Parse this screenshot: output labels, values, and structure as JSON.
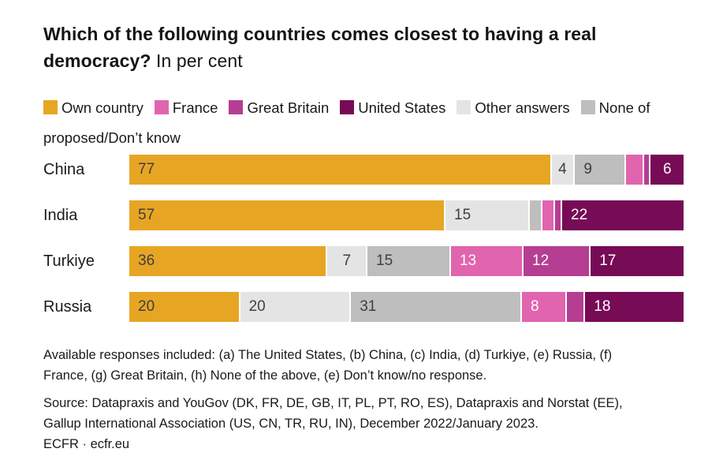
{
  "header": {
    "title_bold": "Which of the following countries comes closest to having a real democracy?",
    "title_rest": " In per cent"
  },
  "chart_data": {
    "type": "bar",
    "stacked": true,
    "orientation": "horizontal",
    "unit": "per cent",
    "title": "Which of the following countries comes closest to having a real democracy?",
    "subtitle": "In per cent",
    "categories": [
      "China",
      "India",
      "Turkiye",
      "Russia"
    ],
    "stack_order": [
      "own_country",
      "other_answers",
      "none_dont_know",
      "france",
      "great_britain",
      "united_states"
    ],
    "legend": [
      {
        "key": "own_country",
        "label": "Own country"
      },
      {
        "key": "france",
        "label": "France"
      },
      {
        "key": "great_britain",
        "label": "Great Britain"
      },
      {
        "key": "united_states",
        "label": "United States"
      },
      {
        "key": "other_answers",
        "label": "Other answers"
      },
      {
        "key": "none_dont_know",
        "label": "None of proposed/Don’t know"
      }
    ],
    "colors": {
      "own_country": {
        "fill": "#E7A524",
        "text": "#3F3F3F"
      },
      "france": {
        "fill": "#E164AF",
        "text": "#FFFFFF"
      },
      "great_britain": {
        "fill": "#B53E92",
        "text": "#FFFFFF"
      },
      "united_states": {
        "fill": "#770B56",
        "text": "#FFFFFF"
      },
      "other_answers": {
        "fill": "#E4E4E4",
        "text": "#3F3F3F"
      },
      "none_dont_know": {
        "fill": "#BEBEBE",
        "text": "#3F3F3F"
      }
    },
    "rows": [
      {
        "category": "China",
        "values": {
          "own_country": 77,
          "other_answers": 4,
          "none_dont_know": 9,
          "france": 3,
          "great_britain": 1,
          "united_states": 6
        },
        "labels": {
          "own_country": "77",
          "other_answers": "4",
          "none_dont_know": "9",
          "france": "",
          "great_britain": "",
          "united_states": "6"
        }
      },
      {
        "category": "India",
        "values": {
          "own_country": 57,
          "other_answers": 15,
          "none_dont_know": 2,
          "france": 2,
          "great_britain": 1,
          "united_states": 22
        },
        "labels": {
          "own_country": "57",
          "other_answers": "15",
          "none_dont_know": "",
          "france": "",
          "great_britain": "",
          "united_states": "22"
        }
      },
      {
        "category": "Turkiye",
        "values": {
          "own_country": 36,
          "other_answers": 7,
          "none_dont_know": 15,
          "france": 13,
          "great_britain": 12,
          "united_states": 17
        },
        "labels": {
          "own_country": "36",
          "other_answers": "7",
          "none_dont_know": "15",
          "france": "13",
          "great_britain": "12",
          "united_states": "17"
        }
      },
      {
        "category": "Russia",
        "values": {
          "own_country": 20,
          "other_answers": 20,
          "none_dont_know": 31,
          "france": 8,
          "great_britain": 3,
          "united_states": 18
        },
        "labels": {
          "own_country": "20",
          "other_answers": "20",
          "none_dont_know": "31",
          "france": "8",
          "great_britain": "",
          "united_states": "18"
        }
      }
    ]
  },
  "footnotes": {
    "responses": "Available responses included: (a) The United States, (b) China, (c) India, (d) Turkiye, (e) Russia, (f) France, (g) Great Britain, (h) None of the above, (e) Don’t know/no response.",
    "source": "Source: Datapraxis and YouGov (DK, FR, DE, GB, IT, PL, PT, RO, ES), Datapraxis and Norstat (EE), Gallup International Association (US, CN, TR, RU, IN), December 2022/January 2023.",
    "credit": "ECFR · ecfr.eu"
  }
}
